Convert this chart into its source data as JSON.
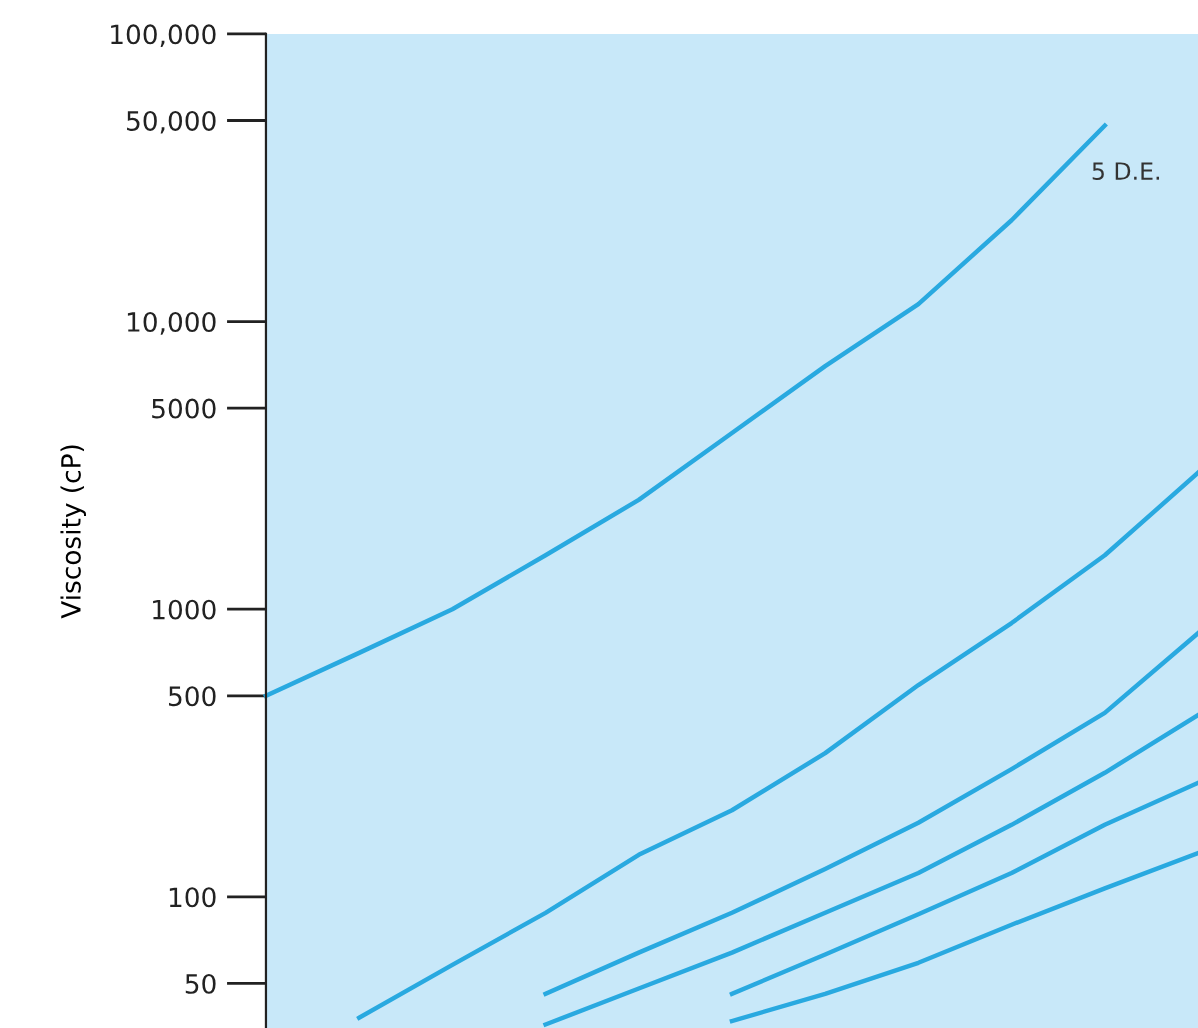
{
  "chart_data": {
    "type": "line",
    "ylabel": "Viscosity (cP)",
    "log": "y",
    "tick_labels": "y",
    "grid": false,
    "legend": false,
    "marker": "none",
    "line_style": "solid",
    "categories": [
      null,
      null,
      null,
      null,
      null,
      null,
      null,
      null,
      null,
      null,
      null
    ],
    "ylim": [
      35,
      100000
    ],
    "yticks": [
      50,
      100,
      500,
      1000,
      5000,
      {
        "value": 10000,
        "label": "10,000"
      },
      {
        "value": 50000,
        "label": "50,000"
      },
      {
        "value": 100000,
        "label": "100,000"
      }
    ],
    "series": [
      {
        "name": "5 D.E.",
        "color": "#29a9e0",
        "values": [
          500,
          705,
          1000,
          1540,
          2400,
          4100,
          7000,
          11500,
          22500,
          48000,
          null
        ]
      },
      {
        "color": "#29a9e0",
        "values": [
          null,
          38,
          58,
          88,
          140,
          200,
          316,
          545,
          895,
          1540,
          2980
        ]
      },
      {
        "color": "#29a9e0",
        "values": [
          null,
          null,
          null,
          46,
          64,
          88,
          125,
          181,
          278,
          436,
          825
        ]
      },
      {
        "color": "#29a9e0",
        "values": [
          null,
          null,
          null,
          36,
          48,
          64,
          88,
          121,
          178,
          270,
          428
        ]
      },
      {
        "color": "#29a9e0",
        "values": [
          null,
          null,
          null,
          null,
          null,
          46,
          63,
          87,
          121,
          178,
          249
        ]
      },
      {
        "color": "#29a9e0",
        "values": [
          null,
          null,
          null,
          null,
          null,
          37,
          46,
          59,
          80,
          107,
          142
        ]
      }
    ]
  }
}
